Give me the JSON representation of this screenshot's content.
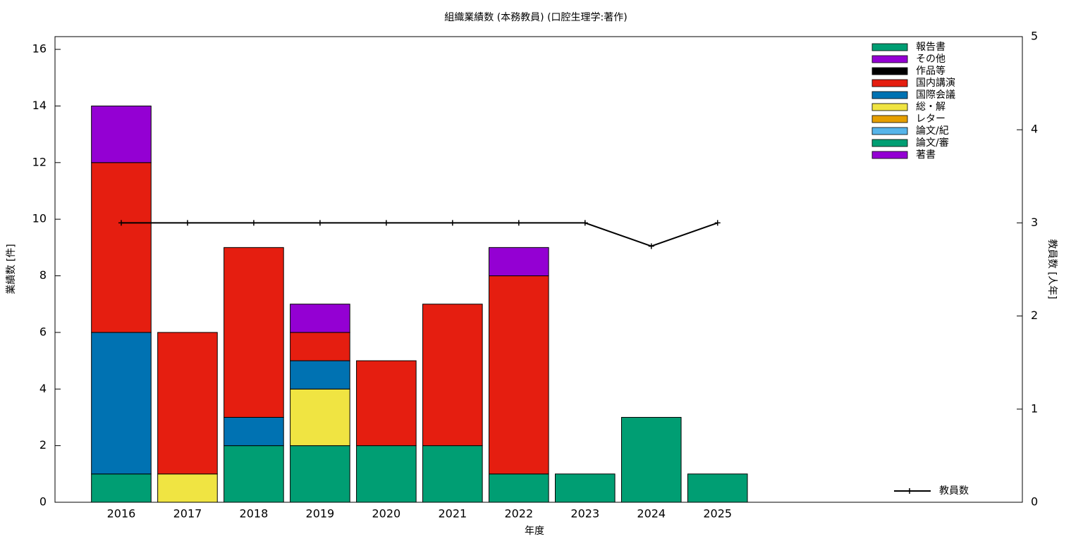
{
  "chart_data": {
    "type": "bar",
    "title": "組織業績数 (本務教員) (口腔生理学:著作)",
    "x_label": "年度",
    "y_label": "業績数 [件]",
    "y2_label": "教員数 [人年]",
    "x": [
      2016,
      2017,
      2018,
      2019,
      2020,
      2021,
      2022,
      2023,
      2024,
      2025
    ],
    "xlim": [
      2015,
      2029.6
    ],
    "xticks": [
      2016,
      2017,
      2018,
      2019,
      2020,
      2021,
      2022,
      2023,
      2024,
      2025
    ],
    "ylim": [
      0,
      16.45
    ],
    "yticks": [
      0,
      2,
      4,
      6,
      8,
      10,
      12,
      14,
      16
    ],
    "y2lim": [
      0,
      5
    ],
    "y2ticks": [
      0,
      1,
      2,
      3,
      4,
      5
    ],
    "stacked": true,
    "legend": "top-right",
    "series": [
      {
        "name": "報告書",
        "color": "#009e73",
        "values": [
          0,
          0,
          0,
          0,
          0,
          0,
          0,
          0,
          0,
          0
        ]
      },
      {
        "name": "その他",
        "color": "#9400d3",
        "values": [
          2,
          0,
          0,
          1,
          0,
          0,
          1,
          0,
          0,
          0
        ]
      },
      {
        "name": "作品等",
        "color": "#000000",
        "values": [
          0,
          0,
          0,
          0,
          0,
          0,
          0,
          0,
          0,
          0
        ]
      },
      {
        "name": "国内講演",
        "color": "#e51e10",
        "values": [
          6,
          5,
          6,
          1,
          3,
          5,
          7,
          0,
          0,
          0
        ]
      },
      {
        "name": "国際会議",
        "color": "#0072b2",
        "values": [
          5,
          0,
          1,
          1,
          0,
          0,
          0,
          0,
          0,
          0
        ]
      },
      {
        "name": "総・解",
        "color": "#f0e442",
        "values": [
          0,
          1,
          0,
          2,
          0,
          0,
          0,
          0,
          0,
          0
        ]
      },
      {
        "name": "レター",
        "color": "#e69f00",
        "values": [
          0,
          0,
          0,
          0,
          0,
          0,
          0,
          0,
          0,
          0
        ]
      },
      {
        "name": "論文/紀",
        "color": "#56b4e9",
        "values": [
          0,
          0,
          0,
          0,
          0,
          0,
          0,
          0,
          0,
          0
        ]
      },
      {
        "name": "論文/審",
        "color": "#009e73",
        "values": [
          1,
          0,
          2,
          2,
          2,
          2,
          1,
          1,
          3,
          1
        ]
      },
      {
        "name": "著書",
        "color": "#9400d3",
        "values": [
          0,
          0,
          0,
          0,
          0,
          0,
          0,
          0,
          0,
          0
        ]
      }
    ],
    "line_series": {
      "name": "教員数",
      "color": "#000000",
      "axis": "y2",
      "values": [
        3,
        3,
        3,
        3,
        3,
        3,
        3,
        3,
        2.75,
        3
      ]
    }
  }
}
